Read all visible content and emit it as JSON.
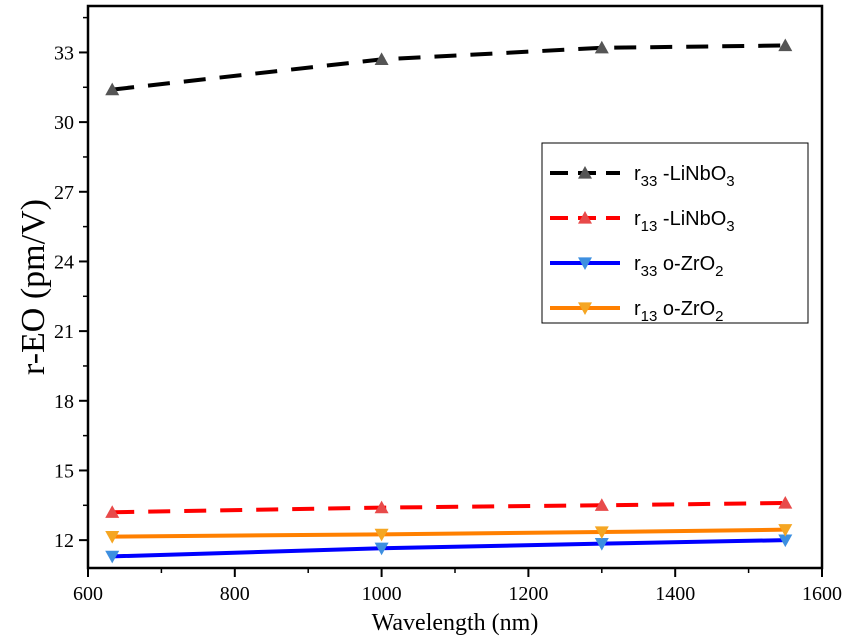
{
  "chart_data": {
    "type": "line",
    "xlabel": "Wavelength (nm)",
    "ylabel": "r-EO (pm/V)",
    "xlim": [
      600,
      1600
    ],
    "ylim": [
      10.8,
      35.0
    ],
    "x_ticks": [
      600,
      800,
      1000,
      1200,
      1400,
      1600
    ],
    "y_ticks": [
      12,
      15,
      18,
      21,
      24,
      27,
      30,
      33
    ],
    "x_tick_labels": [
      "600",
      "800",
      "1000",
      "1200",
      "1400",
      "1600"
    ],
    "y_tick_labels": [
      "12",
      "15",
      "18",
      "21",
      "24",
      "27",
      "30",
      "33"
    ],
    "legend_position": "upper-right",
    "series": [
      {
        "name": "r33 -LiNbO3",
        "label_main": "r",
        "label_sub": "33",
        "label_rest": " -LiNbO",
        "label_sub2": "3",
        "color": "#000000",
        "marker_color": "#555555",
        "dashed": true,
        "marker": "triangle-up",
        "x": [
          633,
          1000,
          1300,
          1550
        ],
        "y": [
          31.4,
          32.7,
          33.2,
          33.3
        ]
      },
      {
        "name": "r13 -LiNbO3",
        "label_main": "r",
        "label_sub": "13",
        "label_rest": " -LiNbO",
        "label_sub2": "3",
        "color": "#ff0000",
        "marker_color": "#e84a4a",
        "dashed": true,
        "marker": "triangle-up",
        "x": [
          633,
          1000,
          1300,
          1550
        ],
        "y": [
          13.2,
          13.4,
          13.5,
          13.6
        ]
      },
      {
        "name": "r33 o-ZrO2",
        "label_main": "r",
        "label_sub": "33",
        "label_rest": "  o-ZrO",
        "label_sub2": "2",
        "color": "#0000ff",
        "marker_color": "#3d8fe0",
        "dashed": false,
        "marker": "triangle-down",
        "x": [
          633,
          1000,
          1300,
          1550
        ],
        "y": [
          11.3,
          11.65,
          11.85,
          12.0
        ]
      },
      {
        "name": "r13 o-ZrO2",
        "label_main": "r",
        "label_sub": "13",
        "label_rest": "  o-ZrO",
        "label_sub2": "2",
        "color": "#ff8000",
        "marker_color": "#f5a623",
        "dashed": false,
        "marker": "triangle-down",
        "x": [
          633,
          1000,
          1300,
          1550
        ],
        "y": [
          12.15,
          12.25,
          12.35,
          12.45
        ]
      }
    ]
  }
}
